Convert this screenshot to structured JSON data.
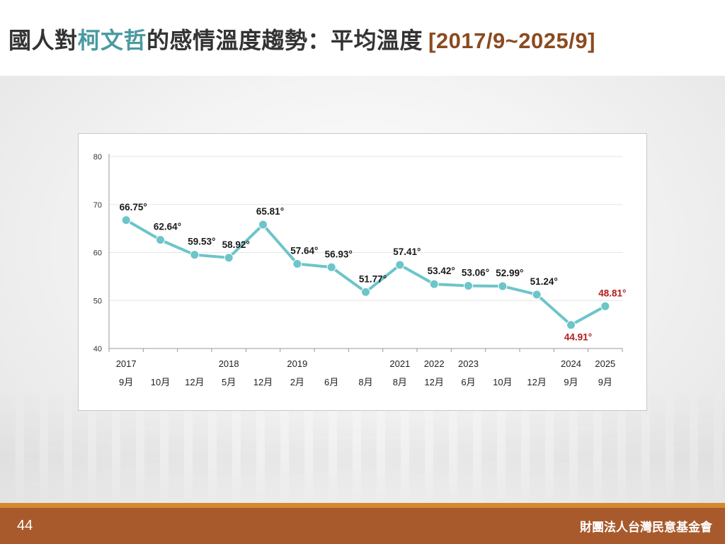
{
  "title": {
    "part1": "國人對",
    "highlight": "柯文哲",
    "part2": "的感情溫度趨勢：平均溫度",
    "range": "[2017/9~2025/9]"
  },
  "footer": {
    "page_number": "44",
    "organization": "財團法人台灣民意基金會"
  },
  "colors": {
    "line": "#6cc5c9",
    "highlight_title": "#4a9aa0",
    "range_text": "#8b4a1f",
    "emphasis_label": "#b01c1c",
    "footer_bg": "#a85a2c",
    "footer_strip": "#d38a2e"
  },
  "chart_data": {
    "type": "line",
    "title": "",
    "xlabel": "",
    "ylabel": "",
    "ylim": [
      40,
      80
    ],
    "yticks": [
      "40",
      "50",
      "60",
      "70",
      "80"
    ],
    "grid": true,
    "categories": [
      {
        "year": "2017",
        "month": "9月"
      },
      {
        "year": "",
        "month": "10月"
      },
      {
        "year": "",
        "month": "12月"
      },
      {
        "year": "2018",
        "month": "5月"
      },
      {
        "year": "",
        "month": "12月"
      },
      {
        "year": "2019",
        "month": "2月"
      },
      {
        "year": "",
        "month": "6月"
      },
      {
        "year": "",
        "month": "8月"
      },
      {
        "year": "2021",
        "month": "8月"
      },
      {
        "year": "2022",
        "month": "12月"
      },
      {
        "year": "2023",
        "month": "6月"
      },
      {
        "year": "",
        "month": "10月"
      },
      {
        "year": "",
        "month": "12月"
      },
      {
        "year": "2024",
        "month": "9月"
      },
      {
        "year": "2025",
        "month": "9月"
      }
    ],
    "series": [
      {
        "values": [
          66.75,
          62.64,
          59.53,
          58.92,
          65.81,
          57.64,
          56.93,
          51.77,
          57.41,
          53.42,
          53.06,
          52.99,
          51.24,
          44.91,
          48.81
        ]
      }
    ],
    "data_labels": [
      "66.75°",
      "62.64°",
      "59.53°",
      "58.92°",
      "65.81°",
      "57.64°",
      "56.93°",
      "51.77°",
      "57.41°",
      "53.42°",
      "53.06°",
      "52.99°",
      "51.24°",
      "44.91°",
      "48.81°"
    ],
    "emphasized_points": [
      13,
      14
    ]
  }
}
